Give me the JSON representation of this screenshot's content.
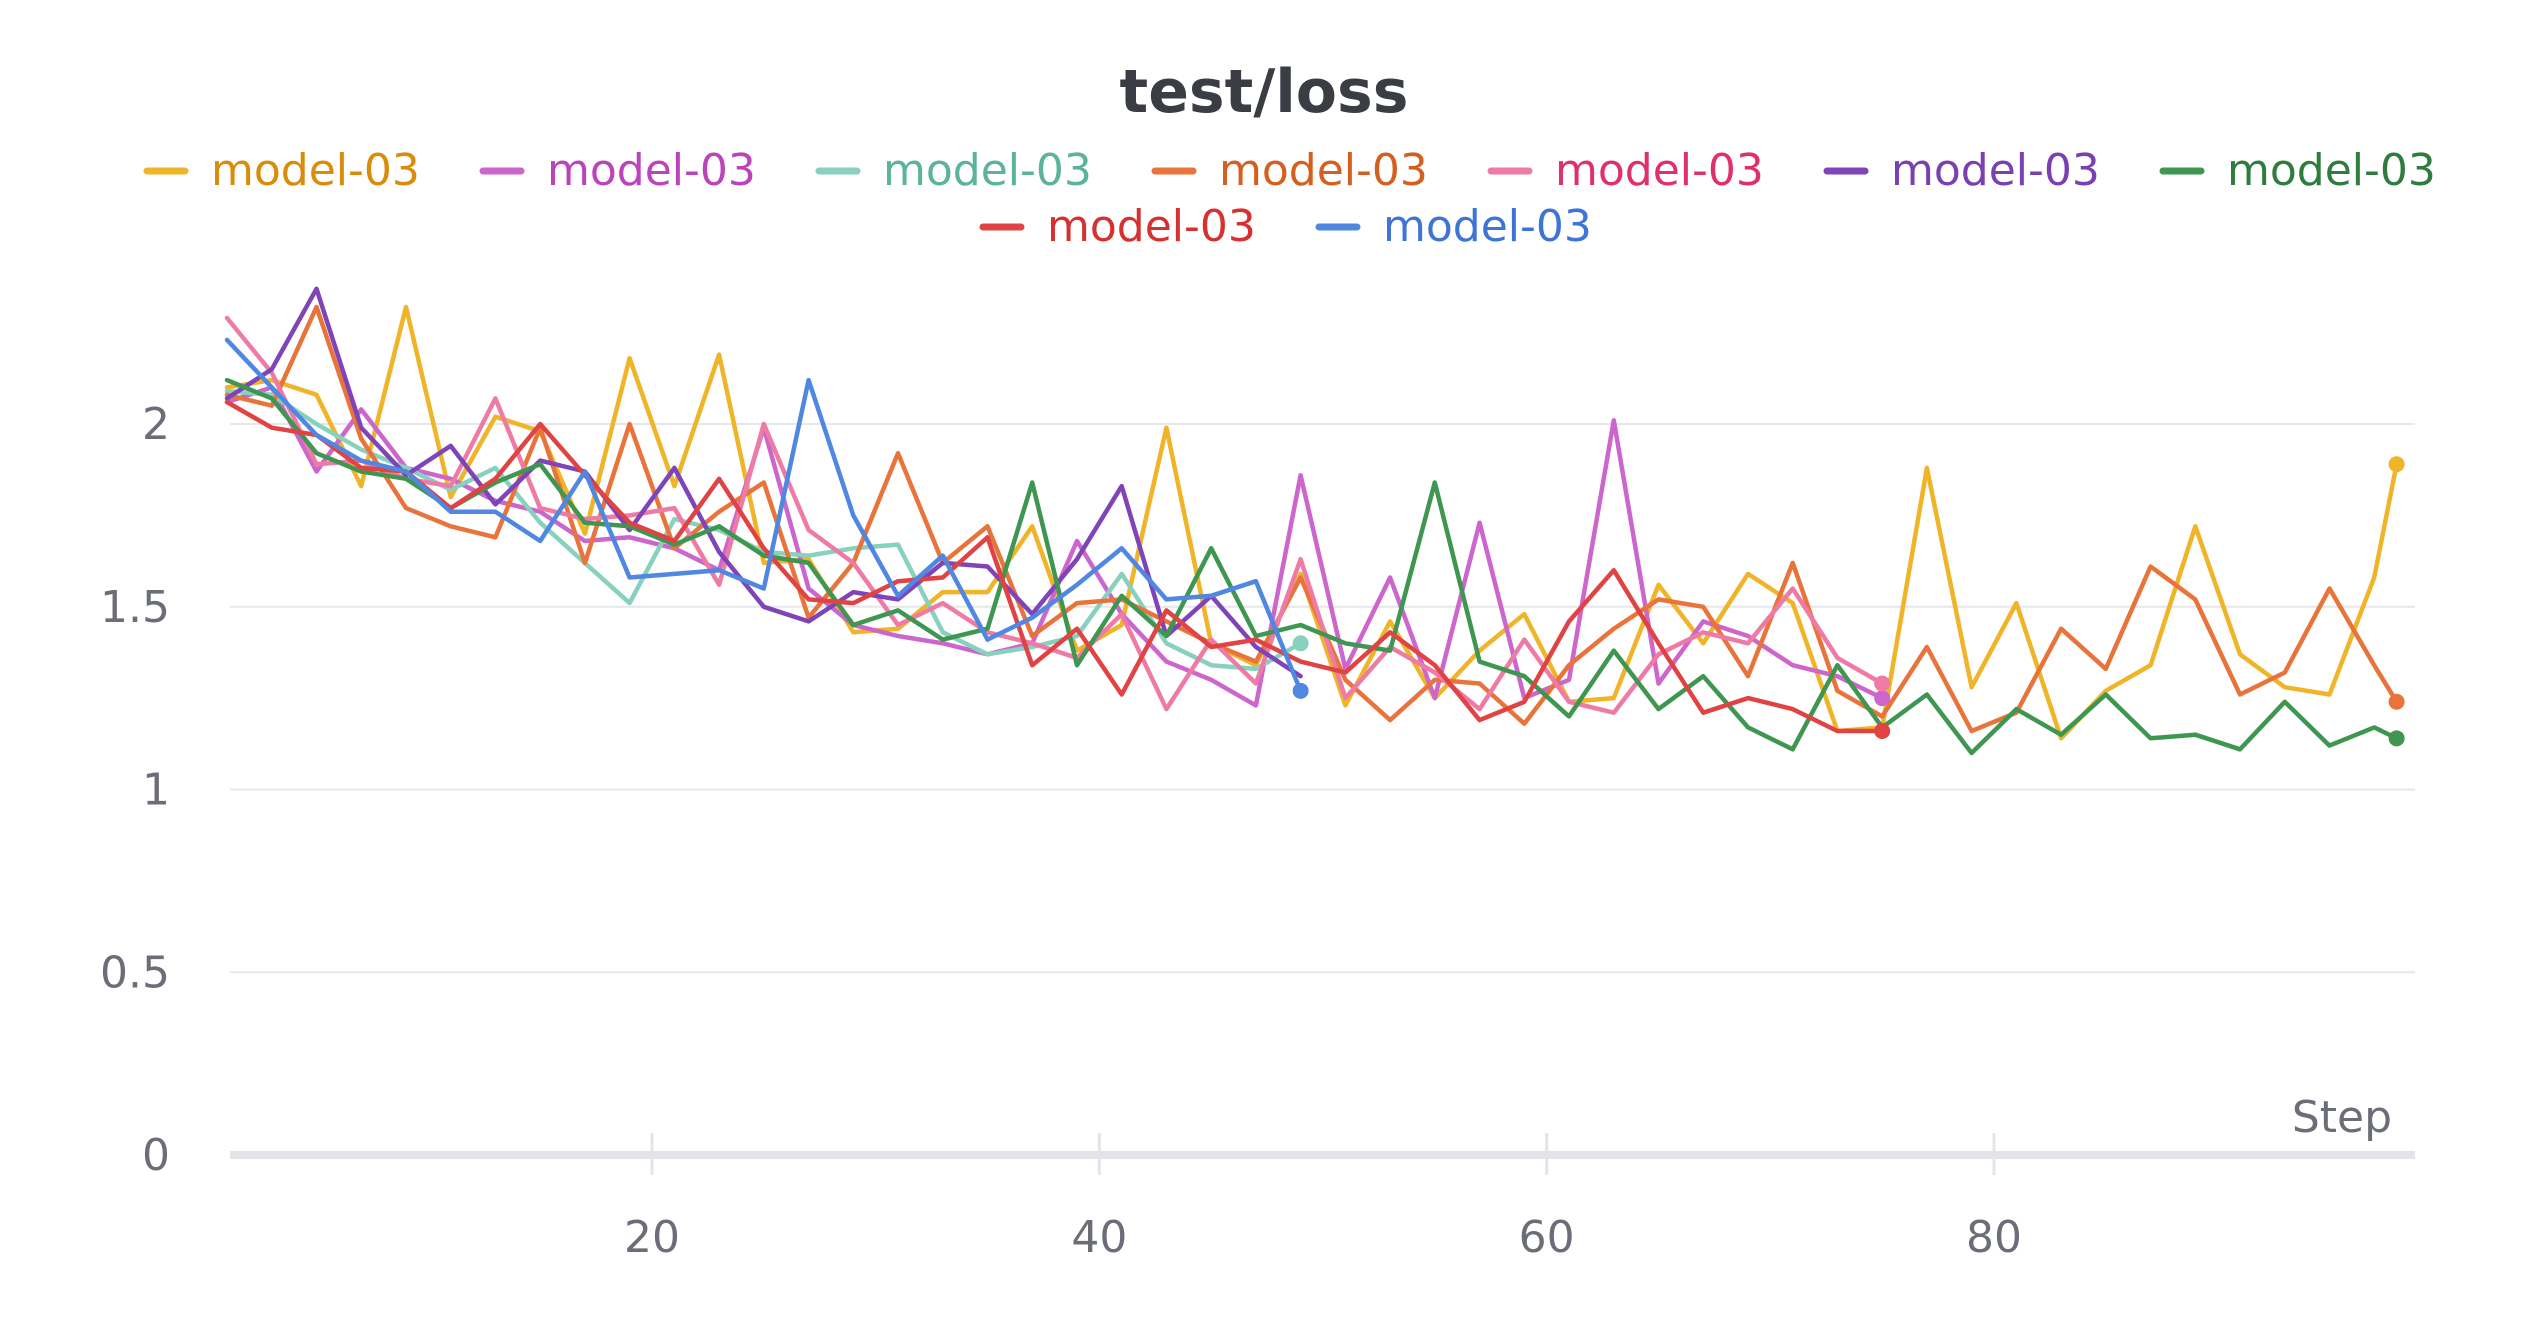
{
  "chart_data": {
    "type": "line",
    "title": "test/loss",
    "xlabel": "Step",
    "ylabel": "",
    "xlim": [
      0,
      98
    ],
    "ylim": [
      0,
      2.3
    ],
    "x_ticks": [
      20,
      40,
      60,
      80
    ],
    "y_ticks": [
      0,
      0.5,
      1,
      1.5,
      2
    ],
    "y_tick_labels": [
      "0",
      "0.5",
      "1",
      "1.5",
      "2"
    ],
    "x_tick_labels": [
      "20",
      "40",
      "60",
      "80"
    ],
    "grid": "horizontal",
    "legend_position": "top",
    "series": [
      {
        "name": "model-03",
        "color": "#f0b429",
        "label_color": "#d98c0a",
        "end_marker": true,
        "x": [
          1,
          3,
          5,
          7,
          9,
          11,
          13,
          15,
          17,
          19,
          21,
          23,
          25,
          27,
          29,
          31,
          33,
          35,
          37,
          39,
          41,
          43,
          45,
          47,
          49,
          51,
          53,
          55,
          57,
          59,
          61,
          63,
          65,
          67,
          69,
          71,
          73,
          75,
          77,
          79,
          81,
          83,
          85,
          87,
          89,
          91,
          93,
          95,
          97,
          98
        ],
        "y": [
          2.1,
          2.12,
          2.08,
          1.83,
          2.32,
          1.8,
          2.02,
          1.98,
          1.7,
          2.18,
          1.83,
          2.19,
          1.62,
          1.63,
          1.43,
          1.44,
          1.54,
          1.54,
          1.72,
          1.38,
          1.45,
          1.99,
          1.4,
          1.34,
          1.59,
          1.23,
          1.46,
          1.25,
          1.38,
          1.48,
          1.24,
          1.25,
          1.56,
          1.4,
          1.59,
          1.51,
          1.16,
          1.17,
          1.88,
          1.28,
          1.51,
          1.14,
          1.27,
          1.34,
          1.72,
          1.37,
          1.28,
          1.26,
          1.58,
          1.89
        ]
      },
      {
        "name": "model-03",
        "color": "#cc66cc",
        "label_color": "#bb44bb",
        "end_marker": true,
        "x": [
          1,
          3,
          5,
          7,
          9,
          11,
          13,
          15,
          17,
          19,
          21,
          23,
          25,
          27,
          29,
          31,
          33,
          35,
          37,
          39,
          41,
          43,
          45,
          47,
          49,
          51,
          53,
          55,
          57,
          59,
          61,
          63,
          65,
          67,
          69,
          71,
          73,
          75
        ],
        "y": [
          2.06,
          2.1,
          1.87,
          2.04,
          1.88,
          1.85,
          1.79,
          1.76,
          1.68,
          1.69,
          1.66,
          1.6,
          1.99,
          1.55,
          1.45,
          1.42,
          1.4,
          1.37,
          1.4,
          1.68,
          1.48,
          1.35,
          1.3,
          1.23,
          1.86,
          1.33,
          1.58,
          1.25,
          1.73,
          1.25,
          1.3,
          2.01,
          1.29,
          1.46,
          1.42,
          1.34,
          1.31,
          1.25
        ]
      },
      {
        "name": "model-03",
        "color": "#88d1bf",
        "label_color": "#5ab39a",
        "end_marker": true,
        "x": [
          1,
          3,
          5,
          7,
          9,
          11,
          13,
          15,
          17,
          19,
          21,
          23,
          25,
          27,
          29,
          31,
          33,
          35,
          37,
          39,
          41,
          43,
          45,
          47,
          49
        ],
        "y": [
          2.09,
          2.08,
          2.0,
          1.93,
          1.88,
          1.82,
          1.88,
          1.73,
          1.62,
          1.51,
          1.74,
          1.71,
          1.65,
          1.64,
          1.66,
          1.67,
          1.43,
          1.37,
          1.39,
          1.42,
          1.59,
          1.4,
          1.34,
          1.33,
          1.4
        ]
      },
      {
        "name": "model-03",
        "color": "#e8743b",
        "label_color": "#d45f1f",
        "end_marker": true,
        "x": [
          1,
          3,
          5,
          7,
          9,
          11,
          13,
          15,
          17,
          19,
          21,
          23,
          25,
          27,
          29,
          31,
          33,
          35,
          37,
          39,
          41,
          43,
          45,
          47,
          49,
          51,
          53,
          55,
          57,
          59,
          61,
          63,
          65,
          67,
          69,
          71,
          73,
          75,
          77,
          79,
          81,
          83,
          85,
          87,
          89,
          91,
          93,
          95,
          97,
          98
        ],
        "y": [
          2.08,
          2.05,
          2.32,
          1.96,
          1.77,
          1.72,
          1.69,
          1.99,
          1.62,
          2.0,
          1.66,
          1.76,
          1.84,
          1.47,
          1.62,
          1.92,
          1.62,
          1.72,
          1.42,
          1.51,
          1.52,
          1.46,
          1.4,
          1.35,
          1.58,
          1.3,
          1.19,
          1.3,
          1.29,
          1.18,
          1.34,
          1.44,
          1.52,
          1.5,
          1.31,
          1.62,
          1.27,
          1.2,
          1.39,
          1.16,
          1.21,
          1.44,
          1.33,
          1.61,
          1.52,
          1.26,
          1.32,
          1.55,
          1.34,
          1.24
        ]
      },
      {
        "name": "model-03",
        "color": "#ee7ba6",
        "label_color": "#e0306b",
        "end_marker": true,
        "x": [
          1,
          3,
          5,
          7,
          9,
          11,
          13,
          15,
          17,
          19,
          21,
          23,
          25,
          27,
          29,
          31,
          33,
          35,
          37,
          39,
          41,
          43,
          45,
          47,
          49,
          51,
          53,
          55,
          57,
          59,
          61,
          63,
          65,
          67,
          69,
          71,
          73,
          75
        ],
        "y": [
          2.29,
          2.14,
          1.89,
          1.9,
          1.85,
          1.83,
          2.07,
          1.77,
          1.74,
          1.75,
          1.77,
          1.56,
          2.0,
          1.71,
          1.62,
          1.45,
          1.51,
          1.43,
          1.4,
          1.36,
          1.48,
          1.22,
          1.41,
          1.29,
          1.63,
          1.25,
          1.39,
          1.32,
          1.22,
          1.41,
          1.24,
          1.21,
          1.37,
          1.43,
          1.4,
          1.55,
          1.36,
          1.29
        ]
      },
      {
        "name": "model-03",
        "color": "#7e44b8",
        "label_color": "#7a3fb0",
        "end_marker": false,
        "x": [
          1,
          3,
          5,
          7,
          9,
          11,
          13,
          15,
          17,
          19,
          21,
          23,
          25,
          27,
          29,
          31,
          33,
          35,
          37,
          39,
          41,
          43,
          45,
          47,
          49
        ],
        "y": [
          2.07,
          2.15,
          2.37,
          1.99,
          1.86,
          1.94,
          1.78,
          1.9,
          1.87,
          1.71,
          1.88,
          1.65,
          1.5,
          1.46,
          1.54,
          1.52,
          1.62,
          1.61,
          1.48,
          1.63,
          1.83,
          1.42,
          1.53,
          1.39,
          1.31
        ]
      },
      {
        "name": "model-03",
        "color": "#3e9651",
        "label_color": "#2e7d3f",
        "end_marker": true,
        "x": [
          1,
          3,
          5,
          7,
          9,
          11,
          13,
          15,
          17,
          19,
          21,
          23,
          25,
          27,
          29,
          31,
          33,
          35,
          37,
          39,
          41,
          43,
          45,
          47,
          49,
          51,
          53,
          55,
          57,
          59,
          61,
          63,
          65,
          67,
          69,
          71,
          73,
          75,
          77,
          79,
          81,
          83,
          85,
          87,
          89,
          91,
          93,
          95,
          97,
          98
        ],
        "y": [
          2.12,
          2.07,
          1.92,
          1.87,
          1.85,
          1.77,
          1.84,
          1.89,
          1.73,
          1.72,
          1.67,
          1.72,
          1.64,
          1.62,
          1.45,
          1.49,
          1.41,
          1.44,
          1.84,
          1.34,
          1.53,
          1.42,
          1.66,
          1.42,
          1.45,
          1.4,
          1.38,
          1.84,
          1.35,
          1.31,
          1.2,
          1.38,
          1.22,
          1.31,
          1.17,
          1.11,
          1.34,
          1.17,
          1.26,
          1.1,
          1.22,
          1.15,
          1.26,
          1.14,
          1.15,
          1.11,
          1.24,
          1.12,
          1.17,
          1.14
        ]
      },
      {
        "name": "model-03",
        "color": "#e04343",
        "label_color": "#d63030",
        "end_marker": true,
        "x": [
          1,
          3,
          5,
          7,
          9,
          11,
          13,
          15,
          17,
          19,
          21,
          23,
          25,
          27,
          29,
          31,
          33,
          35,
          37,
          39,
          41,
          43,
          45,
          47,
          49,
          51,
          53,
          55,
          57,
          59,
          61,
          63,
          65,
          67,
          69,
          71,
          73,
          75
        ],
        "y": [
          2.06,
          1.99,
          1.97,
          1.88,
          1.87,
          1.77,
          1.85,
          2.0,
          1.86,
          1.73,
          1.68,
          1.85,
          1.66,
          1.52,
          1.51,
          1.57,
          1.58,
          1.69,
          1.34,
          1.44,
          1.26,
          1.49,
          1.39,
          1.41,
          1.35,
          1.32,
          1.43,
          1.34,
          1.19,
          1.24,
          1.46,
          1.6,
          1.4,
          1.21,
          1.25,
          1.22,
          1.16,
          1.16
        ]
      },
      {
        "name": "model-03",
        "color": "#5087e0",
        "label_color": "#3d74d6",
        "end_marker": true,
        "x": [
          1,
          3,
          5,
          7,
          9,
          11,
          13,
          15,
          17,
          19,
          21,
          23,
          25,
          27,
          29,
          31,
          33,
          35,
          37,
          39,
          41,
          43,
          45,
          47,
          49
        ],
        "y": [
          2.23,
          2.1,
          1.97,
          1.9,
          1.87,
          1.76,
          1.76,
          1.68,
          1.87,
          1.58,
          1.59,
          1.6,
          1.55,
          2.12,
          1.75,
          1.53,
          1.64,
          1.41,
          1.47,
          1.56,
          1.66,
          1.52,
          1.53,
          1.57,
          1.27
        ]
      }
    ]
  }
}
